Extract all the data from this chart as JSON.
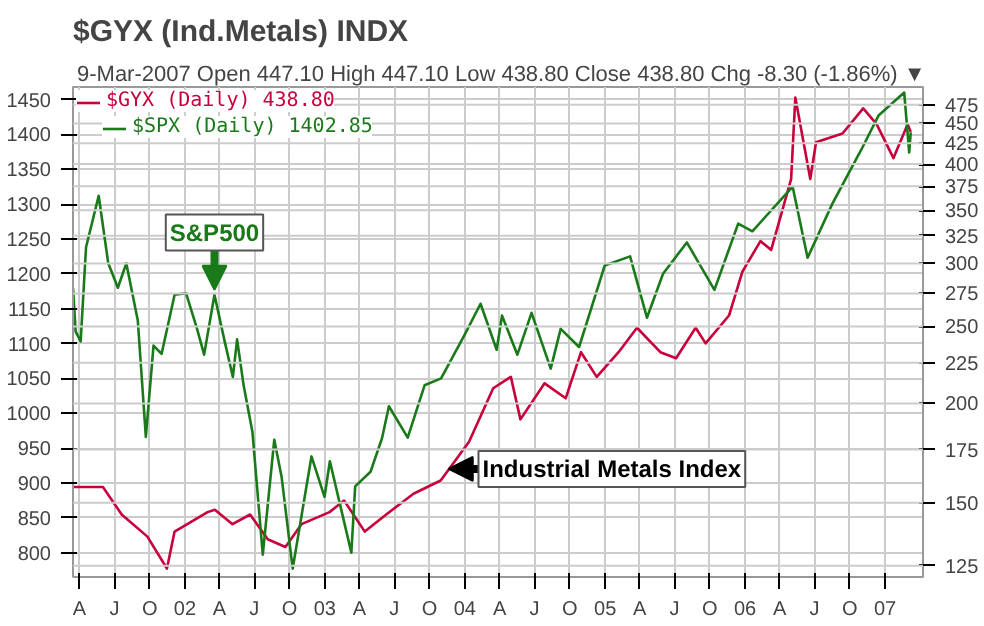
{
  "chart_data": {
    "type": "line",
    "title": "$GYX (Ind.Metals) INDX",
    "subtitle": "9-Mar-2007 Open 447.10 High 447.10 Low 438.80 Close 438.80 Chg -8.30 (-1.86%) ▼",
    "xlim": [
      "2001-03-15",
      "2007-04-10"
    ],
    "xticks": [
      {
        "value": "2001-04-01",
        "label": "A"
      },
      {
        "value": "2001-07-01",
        "label": "J"
      },
      {
        "value": "2001-10-01",
        "label": "O"
      },
      {
        "value": "2002-01-01",
        "label": "02"
      },
      {
        "value": "2002-04-01",
        "label": "A"
      },
      {
        "value": "2002-07-01",
        "label": "J"
      },
      {
        "value": "2002-10-01",
        "label": "O"
      },
      {
        "value": "2003-01-01",
        "label": "03"
      },
      {
        "value": "2003-04-01",
        "label": "A"
      },
      {
        "value": "2003-07-01",
        "label": "J"
      },
      {
        "value": "2003-10-01",
        "label": "O"
      },
      {
        "value": "2004-01-01",
        "label": "04"
      },
      {
        "value": "2004-04-01",
        "label": "A"
      },
      {
        "value": "2004-07-01",
        "label": "J"
      },
      {
        "value": "2004-10-01",
        "label": "O"
      },
      {
        "value": "2005-01-01",
        "label": "05"
      },
      {
        "value": "2005-04-01",
        "label": "A"
      },
      {
        "value": "2005-07-01",
        "label": "J"
      },
      {
        "value": "2005-10-01",
        "label": "O"
      },
      {
        "value": "2006-01-01",
        "label": "06"
      },
      {
        "value": "2006-04-01",
        "label": "A"
      },
      {
        "value": "2006-07-01",
        "label": "J"
      },
      {
        "value": "2006-10-01",
        "label": "O"
      },
      {
        "value": "2007-01-01",
        "label": "07"
      }
    ],
    "ylim": [
      765,
      1468
    ],
    "yticks": [
      800,
      850,
      900,
      950,
      1000,
      1050,
      1100,
      1150,
      1200,
      1250,
      1300,
      1350,
      1400,
      1450
    ],
    "y2lim": [
      121,
      500
    ],
    "y2ticks": [
      125,
      150,
      175,
      200,
      225,
      250,
      275,
      300,
      325,
      350,
      375,
      400,
      425,
      450,
      475
    ],
    "log": "y2",
    "grid": true,
    "legend": "top left",
    "series": [
      {
        "name": "$GYX (Daily) 438.80",
        "color": "#c8003c",
        "axis": "y2",
        "x": [
          "2001-03-15",
          "2001-06-01",
          "2001-07-20",
          "2001-09-25",
          "2001-11-15",
          "2001-12-05",
          "2002-03-01",
          "2002-03-20",
          "2002-05-05",
          "2002-06-20",
          "2002-08-05",
          "2002-09-20",
          "2002-11-01",
          "2003-01-13",
          "2003-02-20",
          "2003-04-15",
          "2003-06-10",
          "2003-08-20",
          "2003-10-30",
          "2004-01-12",
          "2004-03-15",
          "2004-04-30",
          "2004-05-25",
          "2004-07-27",
          "2004-09-20",
          "2004-10-30",
          "2004-12-10",
          "2005-02-05",
          "2005-03-25",
          "2005-05-25",
          "2005-07-05",
          "2005-08-25",
          "2005-09-20",
          "2005-11-20",
          "2005-12-25",
          "2006-02-10",
          "2006-03-10",
          "2006-05-01",
          "2006-05-12",
          "2006-06-20",
          "2006-07-05",
          "2006-09-12",
          "2006-11-05",
          "2006-12-10",
          "2007-01-23",
          "2007-03-01",
          "2007-03-09"
        ],
        "values": [
          157,
          157,
          145,
          136,
          124,
          138,
          146,
          147,
          141,
          145,
          135,
          132,
          141,
          146,
          151,
          138,
          145,
          154,
          160,
          179,
          209,
          216,
          191,
          212,
          203,
          232,
          216,
          232,
          249,
          232,
          228,
          249,
          238,
          258,
          293,
          320,
          312,
          383,
          485,
          383,
          426,
          437,
          470,
          449,
          407,
          449,
          438.8
        ]
      },
      {
        "name": "$SPX (Daily) 1402.85",
        "color": "#1a7a1a",
        "x": [
          "2001-03-15",
          "2001-03-22",
          "2001-04-04",
          "2001-04-18",
          "2001-05-21",
          "2001-06-15",
          "2001-07-10",
          "2001-08-01",
          "2001-08-31",
          "2001-09-21",
          "2001-10-11",
          "2001-11-01",
          "2001-12-05",
          "2002-01-04",
          "2002-02-01",
          "2002-02-20",
          "2002-03-19",
          "2002-04-15",
          "2002-05-06",
          "2002-05-17",
          "2002-06-03",
          "2002-06-26",
          "2002-07-23",
          "2002-08-22",
          "2002-09-10",
          "2002-10-09",
          "2002-11-27",
          "2002-12-31",
          "2003-01-14",
          "2003-03-11",
          "2003-03-21",
          "2003-04-30",
          "2003-05-30",
          "2003-06-17",
          "2003-08-05",
          "2003-09-18",
          "2003-10-31",
          "2003-12-31",
          "2004-02-11",
          "2004-03-24",
          "2004-04-07",
          "2004-05-17",
          "2004-06-23",
          "2004-08-12",
          "2004-09-07",
          "2004-10-25",
          "2004-12-31",
          "2005-03-07",
          "2005-04-20",
          "2005-06-01",
          "2005-08-02",
          "2005-10-13",
          "2005-12-14",
          "2006-01-20",
          "2006-05-05",
          "2006-06-13",
          "2006-08-16",
          "2006-10-31",
          "2006-12-15",
          "2007-02-20",
          "2007-03-05",
          "2007-03-09"
        ],
        "values": [
          1180,
          1117,
          1103,
          1238,
          1312,
          1215,
          1180,
          1215,
          1133,
          966,
          1097,
          1085,
          1170,
          1172,
          1122,
          1084,
          1170,
          1102,
          1052,
          1106,
          1040,
          973,
          797,
          962,
          909,
          777,
          938,
          880,
          931,
          800,
          895,
          916,
          964,
          1010,
          965,
          1040,
          1050,
          1112,
          1157,
          1091,
          1140,
          1084,
          1144,
          1064,
          1121,
          1095,
          1212,
          1225,
          1137,
          1200,
          1245,
          1177,
          1272,
          1261,
          1325,
          1223,
          1300,
          1378,
          1427,
          1460,
          1374,
          1403
        ]
      }
    ],
    "annotations": [
      {
        "text": "S&P500",
        "x": "2002-03-19",
        "y": 1170
      },
      {
        "text": "Industrial Metals Index",
        "x": "2003-11-20",
        "y": 920
      }
    ]
  }
}
